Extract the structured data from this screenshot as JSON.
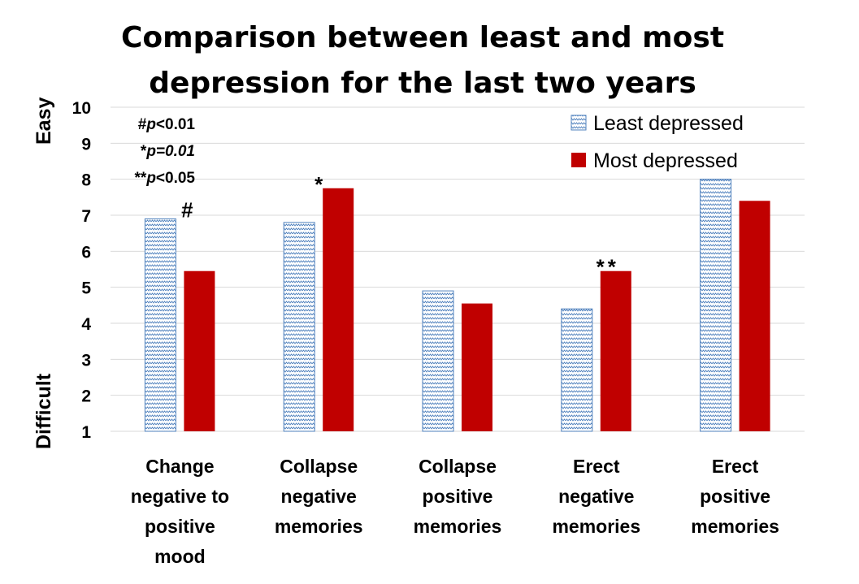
{
  "chart_data": {
    "type": "bar",
    "title": [
      "Comparison between least and most",
      "depression for the last two years"
    ],
    "ylabel_top": "Easy",
    "ylabel_bottom": "Difficult",
    "ylim": [
      1,
      10
    ],
    "yticks": [
      1,
      2,
      3,
      4,
      5,
      6,
      7,
      8,
      9,
      10
    ],
    "grid": true,
    "legend_position": "top-right",
    "categories": [
      [
        "Change",
        "negative to",
        "positive",
        "mood"
      ],
      [
        "Collapse",
        "negative",
        "memories"
      ],
      [
        "Collapse",
        "positive",
        "memories"
      ],
      [
        "Erect",
        "negative",
        "memories"
      ],
      [
        "Erect",
        "positive",
        "memories"
      ]
    ],
    "series": [
      {
        "name": "Least depressed",
        "color": "#4f81bd",
        "pattern": "zigzag",
        "values": [
          6.9,
          6.8,
          4.9,
          4.4,
          8.0
        ]
      },
      {
        "name": "Most depressed",
        "color": "#c00000",
        "values": [
          5.45,
          7.75,
          4.55,
          5.45,
          7.4
        ]
      }
    ],
    "significance_marks": [
      "#",
      "*",
      "",
      "**",
      ""
    ],
    "notes": [
      {
        "symbol": "#",
        "p": "p",
        "rel": "<0.01",
        "italic_value": false
      },
      {
        "symbol": "*",
        "p": "p",
        "rel": "=0.01",
        "italic_value": true
      },
      {
        "symbol": "**",
        "p": "p",
        "rel": "<0.05",
        "italic_value": false
      }
    ]
  }
}
